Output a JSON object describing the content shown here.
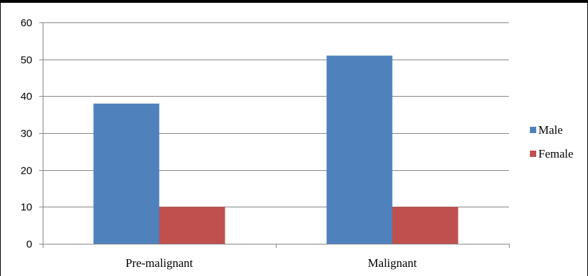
{
  "chart_data": {
    "type": "bar",
    "categories": [
      "Pre-malignant",
      "Malignant"
    ],
    "series": [
      {
        "name": "Male",
        "values": [
          38,
          51
        ],
        "color": "#4F81BD"
      },
      {
        "name": "Female",
        "values": [
          10,
          10
        ],
        "color": "#C0504D"
      }
    ],
    "title": "",
    "xlabel": "",
    "ylabel": "",
    "ylim": [
      0,
      60
    ],
    "yticks": [
      0,
      10,
      20,
      30,
      40,
      50,
      60
    ],
    "grid": true,
    "legend_position": "right"
  }
}
